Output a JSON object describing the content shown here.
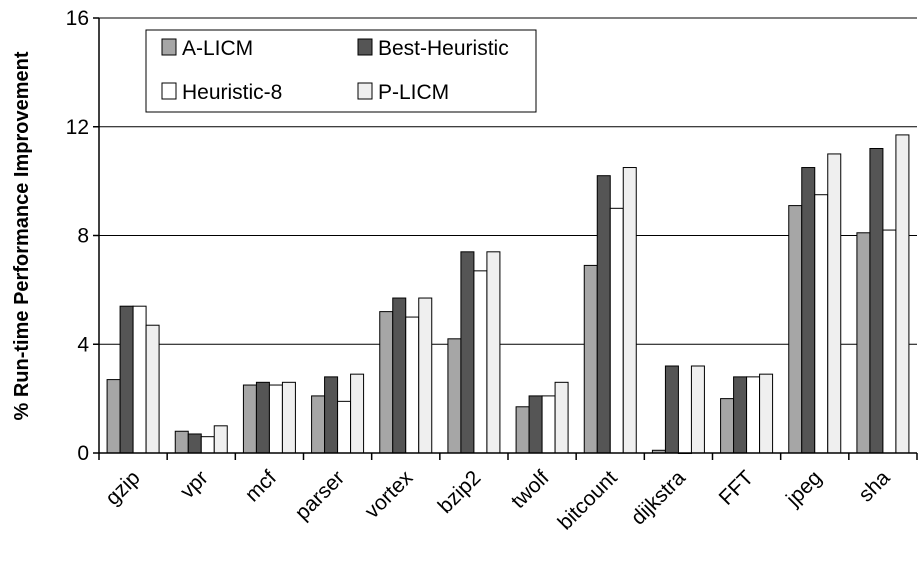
{
  "chart_data": {
    "type": "bar",
    "title": "",
    "xlabel": "",
    "ylabel": "% Run-time Performance Improvement",
    "ylim": [
      0,
      16
    ],
    "yticks": [
      "0",
      "4",
      "8",
      "12",
      "16"
    ],
    "grid": true,
    "legend_position": "top-left",
    "categories": [
      "gzip",
      "vpr",
      "mcf",
      "parser",
      "vortex",
      "bzip2",
      "twolf",
      "bitcount",
      "dijkstra",
      "FFT",
      "jpeg",
      "sha"
    ],
    "series": [
      {
        "name": "A-LICM",
        "color": "#a6a6a6",
        "values": [
          2.7,
          0.8,
          2.5,
          2.1,
          5.2,
          4.2,
          1.7,
          6.9,
          0.1,
          2.0,
          9.1,
          8.1
        ]
      },
      {
        "name": "Best-Heuristic",
        "color": "#555555",
        "values": [
          5.4,
          0.7,
          2.6,
          2.8,
          5.7,
          7.4,
          2.1,
          10.2,
          3.2,
          2.8,
          10.5,
          11.2
        ]
      },
      {
        "name": "Heuristic-8",
        "color": "#ffffff",
        "values": [
          5.4,
          0.6,
          2.5,
          1.9,
          5.0,
          6.7,
          2.1,
          9.0,
          0.0,
          2.8,
          9.5,
          8.2
        ]
      },
      {
        "name": "P-LICM",
        "color": "#efefef",
        "values": [
          4.7,
          1.0,
          2.6,
          2.9,
          5.7,
          7.4,
          2.6,
          10.5,
          3.2,
          2.9,
          11.0,
          11.7
        ]
      }
    ]
  }
}
